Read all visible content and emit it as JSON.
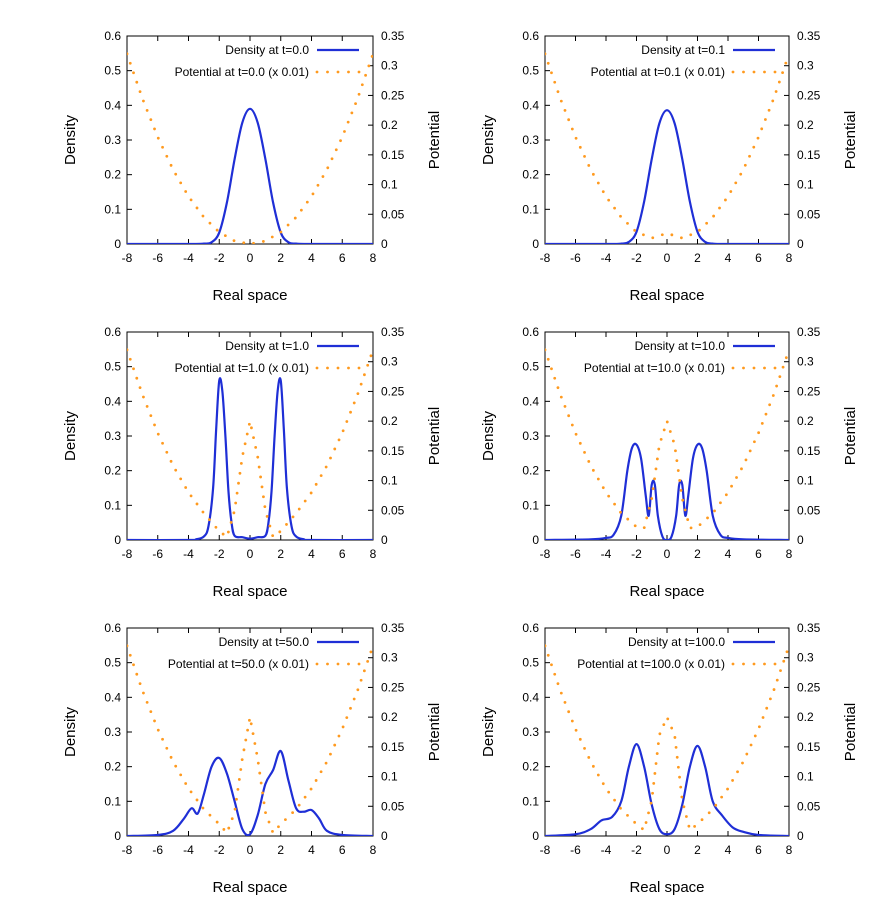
{
  "figure": {
    "colors": {
      "density": "#1f2fd6",
      "potential": "#ff9a1f",
      "axis": "#000000"
    },
    "panel_count": 6
  },
  "chart_data": [
    {
      "type": "line",
      "xlabel": "Real space",
      "ylabel": "Density",
      "y2label": "Potential",
      "xlim": [
        -8,
        8
      ],
      "ylim": [
        0,
        0.6
      ],
      "y2lim": [
        0,
        0.35
      ],
      "xticks": [
        "-8",
        "-6",
        "-4",
        "-2",
        "0",
        "2",
        "4",
        "6",
        "8"
      ],
      "yticks": [
        "0",
        "0.1",
        "0.2",
        "0.3",
        "0.4",
        "0.5",
        "0.6"
      ],
      "y2ticks": [
        "0",
        "0.05",
        "0.1",
        "0.15",
        "0.2",
        "0.25",
        "0.3",
        "0.35"
      ],
      "legend_position": "top-right",
      "series": [
        {
          "name": "Density at t=0.0",
          "style": "solid",
          "axis": "y",
          "x": [
            -8,
            -4,
            -3,
            -2.5,
            -2,
            -1.5,
            -1,
            -0.5,
            0,
            0.5,
            1,
            1.5,
            2,
            2.5,
            3,
            4,
            8
          ],
          "y": [
            0,
            0,
            0.001,
            0.005,
            0.033,
            0.12,
            0.245,
            0.35,
            0.39,
            0.35,
            0.245,
            0.12,
            0.033,
            0.005,
            0.001,
            0,
            0
          ]
        },
        {
          "name": "Potential at t=0.0 (x 0.01)",
          "style": "dotted",
          "axis": "y2",
          "x": [
            -8,
            -7,
            -6,
            -5,
            -4,
            -3,
            -2,
            -1,
            0,
            1,
            2,
            3,
            4,
            5,
            6,
            7,
            8
          ],
          "y": [
            0.32,
            0.245,
            0.18,
            0.125,
            0.08,
            0.045,
            0.02,
            0.005,
            0,
            0.005,
            0.02,
            0.045,
            0.08,
            0.125,
            0.18,
            0.245,
            0.32
          ]
        }
      ]
    },
    {
      "type": "line",
      "xlabel": "Real space",
      "ylabel": "Density",
      "y2label": "Potential",
      "xlim": [
        -8,
        8
      ],
      "ylim": [
        0,
        0.6
      ],
      "y2lim": [
        0,
        0.35
      ],
      "xticks": [
        "-8",
        "-6",
        "-4",
        "-2",
        "0",
        "2",
        "4",
        "6",
        "8"
      ],
      "yticks": [
        "0",
        "0.1",
        "0.2",
        "0.3",
        "0.4",
        "0.5",
        "0.6"
      ],
      "y2ticks": [
        "0",
        "0.05",
        "0.1",
        "0.15",
        "0.2",
        "0.25",
        "0.3",
        "0.35"
      ],
      "legend_position": "top-right",
      "series": [
        {
          "name": "Density at t=0.1",
          "style": "solid",
          "axis": "y",
          "x": [
            -8,
            -4,
            -3,
            -2.5,
            -2,
            -1.5,
            -1,
            -0.5,
            0,
            0.5,
            1,
            1.5,
            2,
            2.5,
            3,
            4,
            8
          ],
          "y": [
            0,
            0,
            0.001,
            0.006,
            0.035,
            0.122,
            0.245,
            0.348,
            0.386,
            0.348,
            0.245,
            0.122,
            0.035,
            0.006,
            0.001,
            0,
            0
          ]
        },
        {
          "name": "Potential at t=0.1 (x 0.01)",
          "style": "dotted",
          "axis": "y2",
          "x": [
            -8,
            -7,
            -6,
            -5,
            -4,
            -3,
            -2,
            -1,
            -0.5,
            0,
            0.5,
            1,
            2,
            3,
            4,
            5,
            6,
            7,
            8
          ],
          "y": [
            0.32,
            0.245,
            0.18,
            0.125,
            0.08,
            0.045,
            0.02,
            0.01,
            0.014,
            0.018,
            0.014,
            0.01,
            0.02,
            0.045,
            0.08,
            0.125,
            0.18,
            0.245,
            0.32
          ]
        }
      ]
    },
    {
      "type": "line",
      "xlabel": "Real space",
      "ylabel": "Density",
      "y2label": "Potential",
      "xlim": [
        -8,
        8
      ],
      "ylim": [
        0,
        0.6
      ],
      "y2lim": [
        0,
        0.35
      ],
      "xticks": [
        "-8",
        "-6",
        "-4",
        "-2",
        "0",
        "2",
        "4",
        "6",
        "8"
      ],
      "yticks": [
        "0",
        "0.1",
        "0.2",
        "0.3",
        "0.4",
        "0.5",
        "0.6"
      ],
      "y2ticks": [
        "0",
        "0.05",
        "0.1",
        "0.15",
        "0.2",
        "0.25",
        "0.3",
        "0.35"
      ],
      "legend_position": "top-right",
      "series": [
        {
          "name": "Density at t=1.0",
          "style": "solid",
          "axis": "y",
          "x": [
            -8,
            -4,
            -3.5,
            -3,
            -2.7,
            -2.4,
            -2.2,
            -2,
            -1.8,
            -1.6,
            -1.4,
            -1.2,
            -1,
            -0.5,
            0,
            0.5,
            1,
            1.2,
            1.4,
            1.6,
            1.8,
            2,
            2.2,
            2.4,
            2.7,
            3,
            3.5,
            4,
            8
          ],
          "y": [
            0,
            0,
            0.002,
            0.01,
            0.04,
            0.15,
            0.32,
            0.46,
            0.43,
            0.3,
            0.14,
            0.05,
            0.012,
            0.008,
            0.004,
            0.008,
            0.012,
            0.05,
            0.14,
            0.3,
            0.43,
            0.46,
            0.32,
            0.15,
            0.04,
            0.01,
            0.002,
            0,
            0
          ]
        },
        {
          "name": "Potential at t=1.0 (x 0.01)",
          "style": "dotted",
          "axis": "y2",
          "x": [
            -8,
            -7,
            -6,
            -5,
            -4,
            -3,
            -2,
            -1.5,
            -1,
            -0.5,
            0,
            0.5,
            1,
            1.5,
            2,
            3,
            4,
            5,
            6,
            7,
            8
          ],
          "y": [
            0.32,
            0.245,
            0.18,
            0.125,
            0.08,
            0.045,
            0.015,
            0.005,
            0.05,
            0.14,
            0.2,
            0.14,
            0.05,
            0.005,
            0.015,
            0.045,
            0.08,
            0.125,
            0.18,
            0.245,
            0.32
          ]
        }
      ]
    },
    {
      "type": "line",
      "xlabel": "Real space",
      "ylabel": "Density",
      "y2label": "Potential",
      "xlim": [
        -8,
        8
      ],
      "ylim": [
        0,
        0.6
      ],
      "y2lim": [
        0,
        0.35
      ],
      "xticks": [
        "-8",
        "-6",
        "-4",
        "-2",
        "0",
        "2",
        "4",
        "6",
        "8"
      ],
      "yticks": [
        "0",
        "0.1",
        "0.2",
        "0.3",
        "0.4",
        "0.5",
        "0.6"
      ],
      "y2ticks": [
        "0",
        "0.05",
        "0.1",
        "0.15",
        "0.2",
        "0.25",
        "0.3",
        "0.35"
      ],
      "legend_position": "top-right",
      "series": [
        {
          "name": "Density at t=10.0",
          "style": "solid",
          "axis": "y",
          "x": [
            -8,
            -5,
            -4,
            -3.5,
            -3,
            -2.6,
            -2.3,
            -2,
            -1.7,
            -1.4,
            -1.2,
            -1,
            -0.8,
            -0.6,
            -0.3,
            0,
            0.3,
            0.6,
            0.8,
            1,
            1.2,
            1.4,
            1.7,
            2,
            2.3,
            2.6,
            3,
            3.5,
            4,
            5,
            8
          ],
          "y": [
            0,
            0.002,
            0.006,
            0.015,
            0.07,
            0.2,
            0.265,
            0.275,
            0.235,
            0.13,
            0.07,
            0.16,
            0.16,
            0.07,
            0.01,
            0.0,
            0.01,
            0.07,
            0.16,
            0.16,
            0.07,
            0.13,
            0.235,
            0.275,
            0.265,
            0.2,
            0.07,
            0.015,
            0.006,
            0.002,
            0
          ]
        },
        {
          "name": "Potential at t=10.0 (x 0.01)",
          "style": "dotted",
          "axis": "y2",
          "x": [
            -8,
            -7,
            -6,
            -5,
            -4,
            -3,
            -2,
            -1.5,
            -1,
            -0.5,
            0,
            0.5,
            1,
            1.5,
            2,
            3,
            4,
            5,
            6,
            7,
            8
          ],
          "y": [
            0.32,
            0.245,
            0.18,
            0.125,
            0.08,
            0.045,
            0.022,
            0.02,
            0.07,
            0.16,
            0.2,
            0.16,
            0.07,
            0.02,
            0.022,
            0.045,
            0.08,
            0.125,
            0.18,
            0.245,
            0.32
          ]
        }
      ]
    },
    {
      "type": "line",
      "xlabel": "Real space",
      "ylabel": "Density",
      "y2label": "Potential",
      "xlim": [
        -8,
        8
      ],
      "ylim": [
        0,
        0.6
      ],
      "y2lim": [
        0,
        0.35
      ],
      "xticks": [
        "-8",
        "-6",
        "-4",
        "-2",
        "0",
        "2",
        "4",
        "6",
        "8"
      ],
      "yticks": [
        "0",
        "0.1",
        "0.2",
        "0.3",
        "0.4",
        "0.5",
        "0.6"
      ],
      "y2ticks": [
        "0",
        "0.05",
        "0.1",
        "0.15",
        "0.2",
        "0.25",
        "0.3",
        "0.35"
      ],
      "legend_position": "top-right",
      "series": [
        {
          "name": "Density at t=50.0",
          "style": "solid",
          "axis": "y",
          "x": [
            -8,
            -6,
            -5,
            -4.3,
            -3.8,
            -3.4,
            -3,
            -2.5,
            -2,
            -1.5,
            -1,
            -0.5,
            0,
            0.5,
            1,
            1.5,
            2,
            2.5,
            3,
            3.5,
            4,
            4.5,
            5,
            6,
            8
          ],
          "y": [
            0,
            0.003,
            0.015,
            0.05,
            0.08,
            0.065,
            0.12,
            0.2,
            0.225,
            0.18,
            0.1,
            0.02,
            0.005,
            0.06,
            0.15,
            0.19,
            0.245,
            0.16,
            0.08,
            0.07,
            0.075,
            0.05,
            0.015,
            0.003,
            0
          ]
        },
        {
          "name": "Potential at t=50.0 (x 0.01)",
          "style": "dotted",
          "axis": "y2",
          "x": [
            -8,
            -7,
            -6,
            -5,
            -4,
            -3,
            -2,
            -1.5,
            -1,
            -0.5,
            0,
            0.5,
            1,
            1.5,
            2,
            3,
            4,
            5,
            6,
            7,
            8
          ],
          "y": [
            0.32,
            0.245,
            0.18,
            0.125,
            0.08,
            0.045,
            0.02,
            0.005,
            0.04,
            0.13,
            0.2,
            0.13,
            0.04,
            0.005,
            0.02,
            0.045,
            0.08,
            0.125,
            0.18,
            0.245,
            0.32
          ]
        }
      ]
    },
    {
      "type": "line",
      "xlabel": "Real space",
      "ylabel": "Density",
      "y2label": "Potential",
      "xlim": [
        -8,
        8
      ],
      "ylim": [
        0,
        0.6
      ],
      "y2lim": [
        0,
        0.35
      ],
      "xticks": [
        "-8",
        "-6",
        "-4",
        "-2",
        "0",
        "2",
        "4",
        "6",
        "8"
      ],
      "yticks": [
        "0",
        "0.1",
        "0.2",
        "0.3",
        "0.4",
        "0.5",
        "0.6"
      ],
      "y2ticks": [
        "0",
        "0.05",
        "0.1",
        "0.15",
        "0.2",
        "0.25",
        "0.3",
        "0.35"
      ],
      "legend_position": "top-right",
      "series": [
        {
          "name": "Density at t=100.0",
          "style": "solid",
          "axis": "y",
          "x": [
            -8,
            -6,
            -5,
            -4.3,
            -3.6,
            -3,
            -2.5,
            -2,
            -1.5,
            -1,
            -0.5,
            0,
            0.5,
            1,
            1.5,
            2,
            2.5,
            3,
            3.6,
            4.3,
            5,
            6,
            8
          ],
          "y": [
            0,
            0.005,
            0.02,
            0.045,
            0.055,
            0.1,
            0.2,
            0.265,
            0.2,
            0.09,
            0.02,
            0.005,
            0.02,
            0.09,
            0.2,
            0.26,
            0.2,
            0.1,
            0.06,
            0.025,
            0.012,
            0.003,
            0
          ]
        },
        {
          "name": "Potential at t=100.0 (x 0.01)",
          "style": "dotted",
          "axis": "y2",
          "x": [
            -8,
            -7,
            -6,
            -5,
            -4,
            -3,
            -2,
            -1.5,
            -1,
            -0.5,
            0,
            0.5,
            1,
            1.5,
            2,
            3,
            4,
            5,
            6,
            7,
            8
          ],
          "y": [
            0.32,
            0.245,
            0.18,
            0.125,
            0.08,
            0.045,
            0.02,
            0.01,
            0.06,
            0.17,
            0.2,
            0.17,
            0.06,
            0.01,
            0.02,
            0.045,
            0.08,
            0.125,
            0.18,
            0.245,
            0.32
          ]
        }
      ]
    }
  ]
}
